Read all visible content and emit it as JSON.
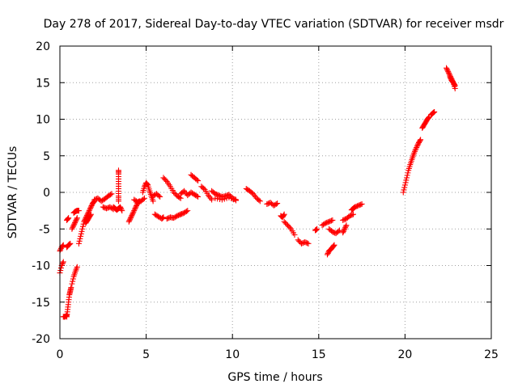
{
  "chart_data": {
    "type": "scatter",
    "title": "Day 278 of 2017, Sidereal Day-to-day VTEC variation (SDTVAR) for receiver msdr",
    "xlabel": "GPS time / hours",
    "ylabel": "SDTVAR / TECUs",
    "xlim": [
      0,
      25
    ],
    "ylim": [
      -20,
      20
    ],
    "xticks": [
      0,
      5,
      10,
      15,
      20,
      25
    ],
    "yticks": [
      -20,
      -15,
      -10,
      -5,
      0,
      5,
      10,
      15,
      20
    ],
    "grid": true,
    "marker": "+",
    "marker_color": "#ff0000",
    "segments": [
      {
        "x": [
          0.0,
          0.1,
          0.2
        ],
        "y": [
          -8.0,
          -7.5,
          -7.2
        ]
      },
      {
        "x": [
          0.0,
          0.1,
          0.2
        ],
        "y": [
          -11.0,
          -10.0,
          -9.5
        ]
      },
      {
        "x": [
          0.2,
          0.3,
          0.4
        ],
        "y": [
          -17.0,
          -17.0,
          -16.8
        ]
      },
      {
        "x": [
          0.4,
          0.45,
          0.5,
          0.55,
          0.6,
          0.65
        ],
        "y": [
          -17.0,
          -16.0,
          -15.0,
          -14.0,
          -13.5,
          -13.0
        ]
      },
      {
        "x": [
          0.4,
          0.5,
          0.6
        ],
        "y": [
          -7.5,
          -7.2,
          -7.0
        ]
      },
      {
        "x": [
          0.4,
          0.5
        ],
        "y": [
          -3.8,
          -3.5
        ]
      },
      {
        "x": [
          0.7,
          0.8,
          0.9,
          1.0
        ],
        "y": [
          -12.5,
          -11.5,
          -10.8,
          -10.2
        ]
      },
      {
        "x": [
          0.7,
          0.8,
          0.9,
          1.0
        ],
        "y": [
          -5.0,
          -4.5,
          -4.0,
          -3.5
        ]
      },
      {
        "x": [
          0.8,
          0.9,
          1.0,
          1.1
        ],
        "y": [
          -2.8,
          -2.6,
          -2.5,
          -2.5
        ]
      },
      {
        "x": [
          1.1,
          1.2,
          1.3,
          1.4,
          1.5,
          1.6,
          1.7,
          1.8,
          1.9,
          2.0
        ],
        "y": [
          -7.0,
          -6.0,
          -5.0,
          -4.0,
          -3.5,
          -3.0,
          -2.5,
          -2.0,
          -1.5,
          -1.2
        ]
      },
      {
        "x": [
          1.5,
          1.6,
          1.7,
          1.8
        ],
        "y": [
          -4.2,
          -3.8,
          -3.4,
          -3.0
        ]
      },
      {
        "x": [
          2.0,
          2.2,
          2.4,
          2.6,
          2.8,
          3.0
        ],
        "y": [
          -1.0,
          -0.8,
          -1.2,
          -0.9,
          -0.5,
          -0.2
        ]
      },
      {
        "x": [
          2.5,
          2.7,
          2.9,
          3.1
        ],
        "y": [
          -2.0,
          -2.2,
          -2.0,
          -2.3
        ]
      },
      {
        "x": [
          3.1,
          3.2,
          3.3,
          3.4,
          3.5,
          3.6
        ],
        "y": [
          -2.0,
          -2.2,
          -2.4,
          -2.2,
          -2.0,
          -2.5
        ]
      },
      {
        "x": [
          3.4,
          3.4,
          3.4,
          3.4,
          3.4,
          3.4
        ],
        "y": [
          3.0,
          2.5,
          1.5,
          0.5,
          -0.5,
          -1.2
        ]
      },
      {
        "x": [
          4.0,
          4.1,
          4.2,
          4.3,
          4.4,
          4.5,
          4.6
        ],
        "y": [
          -4.0,
          -3.5,
          -3.0,
          -2.5,
          -2.0,
          -1.5,
          -1.2
        ]
      },
      {
        "x": [
          4.3,
          4.5,
          4.7,
          4.9
        ],
        "y": [
          -1.0,
          -1.3,
          -1.2,
          -0.8
        ]
      },
      {
        "x": [
          4.8,
          4.9,
          5.0,
          5.1,
          5.2,
          5.3,
          5.4
        ],
        "y": [
          0.0,
          0.8,
          1.3,
          1.0,
          0.2,
          -0.5,
          -1.2
        ]
      },
      {
        "x": [
          5.4,
          5.6,
          5.8
        ],
        "y": [
          -0.5,
          -0.2,
          -0.6
        ]
      },
      {
        "x": [
          5.5,
          5.7,
          5.9,
          6.0
        ],
        "y": [
          -3.0,
          -3.3,
          -3.6,
          -3.4
        ]
      },
      {
        "x": [
          6.0,
          6.2,
          6.4,
          6.6,
          6.8,
          7.0
        ],
        "y": [
          2.0,
          1.5,
          0.8,
          0.0,
          -0.5,
          -0.8
        ]
      },
      {
        "x": [
          6.2,
          6.4,
          6.6,
          6.8,
          7.0
        ],
        "y": [
          -3.6,
          -3.4,
          -3.5,
          -3.2,
          -3.0
        ]
      },
      {
        "x": [
          7.0,
          7.2,
          7.4,
          7.6,
          7.8,
          8.0
        ],
        "y": [
          -0.2,
          0.2,
          -0.4,
          0.0,
          -0.3,
          -0.6
        ]
      },
      {
        "x": [
          7.0,
          7.2,
          7.4
        ],
        "y": [
          -3.0,
          -2.8,
          -2.5
        ]
      },
      {
        "x": [
          7.6,
          7.8,
          8.0
        ],
        "y": [
          2.4,
          2.0,
          1.6
        ]
      },
      {
        "x": [
          8.2,
          8.4,
          8.6,
          8.8
        ],
        "y": [
          0.8,
          0.4,
          -0.4,
          -1.0
        ]
      },
      {
        "x": [
          8.8,
          9.0,
          9.2,
          9.4,
          9.6,
          9.8,
          10.0,
          10.2
        ],
        "y": [
          0.2,
          -0.2,
          -0.4,
          -0.6,
          -0.5,
          -0.3,
          -0.8,
          -1.0
        ]
      },
      {
        "x": [
          9.0,
          9.4,
          9.8,
          10.2
        ],
        "y": [
          -0.8,
          -1.0,
          -0.7,
          -1.1
        ]
      },
      {
        "x": [
          10.8,
          11.0,
          11.2,
          11.4,
          11.6
        ],
        "y": [
          0.5,
          0.2,
          -0.2,
          -0.8,
          -1.2
        ]
      },
      {
        "x": [
          12.0,
          12.2,
          12.4,
          12.6
        ],
        "y": [
          -1.6,
          -1.4,
          -1.8,
          -1.5
        ]
      },
      {
        "x": [
          12.8,
          12.9,
          13.0
        ],
        "y": [
          -3.2,
          -3.4,
          -3.0
        ]
      },
      {
        "x": [
          13.0,
          13.2,
          13.4,
          13.6
        ],
        "y": [
          -4.0,
          -4.5,
          -5.0,
          -5.8
        ]
      },
      {
        "x": [
          13.8,
          14.0,
          14.2,
          14.4
        ],
        "y": [
          -6.5,
          -7.0,
          -6.8,
          -7.0
        ]
      },
      {
        "x": [
          14.8,
          14.9
        ],
        "y": [
          -5.2,
          -5.0
        ]
      },
      {
        "x": [
          15.2,
          15.4,
          15.6,
          15.8
        ],
        "y": [
          -4.5,
          -4.2,
          -4.0,
          -3.8
        ]
      },
      {
        "x": [
          15.5,
          15.6,
          15.7,
          15.8,
          15.9
        ],
        "y": [
          -8.5,
          -8.0,
          -7.8,
          -7.5,
          -7.2
        ]
      },
      {
        "x": [
          15.6,
          15.8,
          16.0,
          16.2
        ],
        "y": [
          -5.0,
          -5.4,
          -5.6,
          -5.2
        ]
      },
      {
        "x": [
          16.4,
          16.5,
          16.6
        ],
        "y": [
          -5.5,
          -5.0,
          -4.5
        ]
      },
      {
        "x": [
          16.4,
          16.6,
          16.8,
          17.0
        ],
        "y": [
          -3.8,
          -3.6,
          -3.2,
          -3.0
        ]
      },
      {
        "x": [
          16.9,
          17.0,
          17.1,
          17.3,
          17.5
        ],
        "y": [
          -2.4,
          -2.2,
          -2.0,
          -1.8,
          -1.6
        ]
      },
      {
        "x": [
          19.9,
          20.0,
          20.1,
          20.2,
          20.3,
          20.4,
          20.5,
          20.6,
          20.7,
          20.8,
          20.9
        ],
        "y": [
          0.0,
          1.0,
          2.0,
          3.0,
          3.8,
          4.5,
          5.2,
          5.8,
          6.3,
          6.8,
          7.2
        ]
      },
      {
        "x": [
          21.0,
          21.1,
          21.2,
          21.3,
          21.4
        ],
        "y": [
          8.8,
          9.2,
          9.6,
          10.0,
          10.3
        ]
      },
      {
        "x": [
          21.5,
          21.6,
          21.7
        ],
        "y": [
          10.6,
          10.8,
          11.0
        ]
      },
      {
        "x": [
          22.4,
          22.5,
          22.6,
          22.7,
          22.8,
          22.9
        ],
        "y": [
          17.0,
          16.5,
          16.0,
          15.5,
          15.0,
          14.2
        ]
      },
      {
        "x": [
          22.6,
          22.7,
          22.8,
          22.9
        ],
        "y": [
          15.8,
          15.3,
          15.0,
          14.6
        ]
      }
    ]
  }
}
